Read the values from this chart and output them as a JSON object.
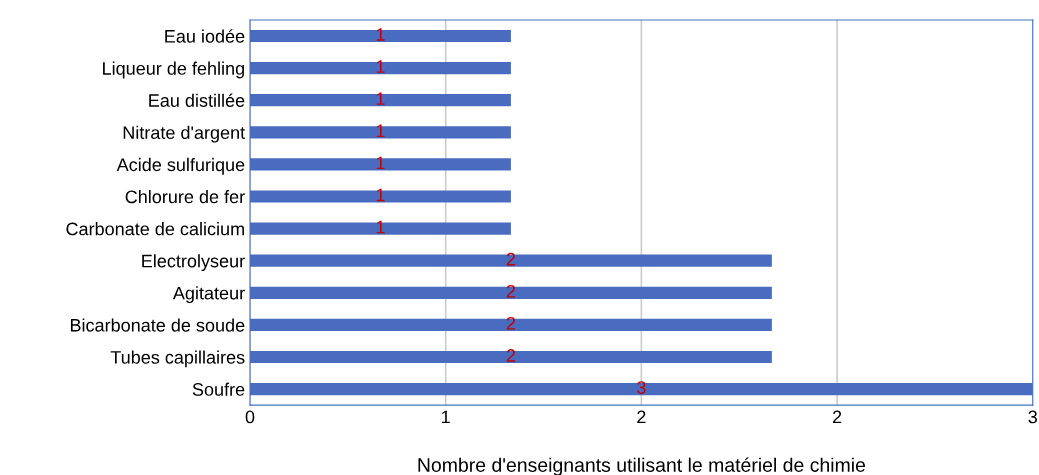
{
  "chart_data": {
    "type": "bar",
    "orientation": "horizontal",
    "xlabel": "Nombre d'enseignants utilisant le matériel de chimie",
    "categories": [
      "Eau iodée",
      "Liqueur de fehling",
      "Eau distillée",
      "Nitrate d'argent",
      "Acide sulfurique",
      "Chlorure de fer",
      "Carbonate de calicium",
      "Electrolyseur",
      "Agitateur",
      "Bicarbonate de soude",
      "Tubes capillaires",
      "Soufre"
    ],
    "values": [
      1,
      1,
      1,
      1,
      1,
      1,
      1,
      2,
      2,
      2,
      2,
      3
    ],
    "color": "#4a6cc0",
    "data_labels": true,
    "xlim": [
      0,
      3
    ],
    "xticks": [
      0,
      {
        "value": 0.75,
        "label": "1"
      },
      {
        "value": 1.5,
        "label": "2"
      },
      {
        "value": 2.25,
        "label": "2"
      },
      3
    ],
    "grid": "x",
    "legend": false
  }
}
